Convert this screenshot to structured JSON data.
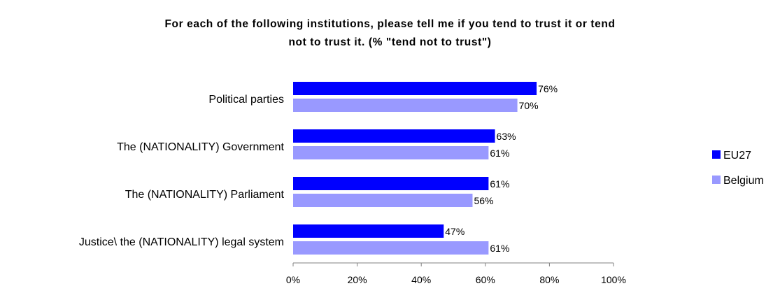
{
  "chart_data": {
    "type": "bar",
    "orientation": "horizontal",
    "title_line1": "For each of the following institutions, please tell me if you tend to trust it or tend",
    "title_line2": "not to trust it. (% \"tend not to trust\")",
    "categories": [
      "Political parties",
      "The (NATIONALITY) Government",
      "The (NATIONALITY) Parliament",
      "Justice\\ the (NATIONALITY) legal system"
    ],
    "series": [
      {
        "name": "EU27",
        "color": "#0000ff",
        "values": [
          76,
          63,
          61,
          47
        ],
        "labels": [
          "76%",
          "63%",
          "61%",
          "47%"
        ]
      },
      {
        "name": "Belgium",
        "color": "#9999ff",
        "values": [
          70,
          61,
          56,
          61
        ],
        "labels": [
          "70%",
          "61%",
          "56%",
          "61%"
        ]
      }
    ],
    "xlim": [
      0,
      100
    ],
    "xticks": [
      {
        "value": 0,
        "label": "0%"
      },
      {
        "value": 20,
        "label": "20%"
      },
      {
        "value": 40,
        "label": "40%"
      },
      {
        "value": 60,
        "label": "60%"
      },
      {
        "value": 80,
        "label": "80%"
      },
      {
        "value": 100,
        "label": "100%"
      }
    ],
    "grid": false,
    "legend_position": "right"
  }
}
